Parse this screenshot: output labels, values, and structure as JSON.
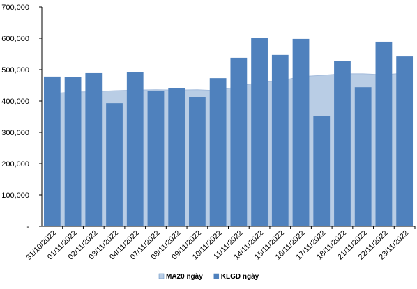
{
  "chart_data": {
    "type": "bar-area",
    "categories": [
      "31/10/2022",
      "01/11/2022",
      "02/11/2022",
      "03/11/2022",
      "04/11/2022",
      "07/11/2022",
      "08/11/2022",
      "09/11/2022",
      "10/11/2022",
      "11/11/2022",
      "14/11/2022",
      "15/11/2022",
      "16/11/2022",
      "17/11/2022",
      "18/11/2022",
      "21/11/2022",
      "22/11/2022",
      "23/11/2022"
    ],
    "series": [
      {
        "name": "MA20 ngày",
        "kind": "area",
        "color": "#b9cde5",
        "values": [
          424000,
          429000,
          430000,
          433000,
          435000,
          436000,
          435000,
          436000,
          433000,
          447000,
          460000,
          464000,
          478000,
          482000,
          487000,
          487000,
          484000,
          489000
        ]
      },
      {
        "name": "KLGD ngày",
        "kind": "bar",
        "color": "#4f81bd",
        "values": [
          478000,
          476000,
          489000,
          393000,
          493000,
          433000,
          440000,
          413000,
          473000,
          538000,
          600000,
          547000,
          598000,
          353000,
          527000,
          444000,
          589000,
          542000
        ]
      }
    ],
    "ylim": [
      0,
      700000
    ],
    "yticks": [
      {
        "value": 0,
        "label": "-"
      },
      {
        "value": 100000,
        "label": "100,000"
      },
      {
        "value": 200000,
        "label": "200,000"
      },
      {
        "value": 300000,
        "label": "300,000"
      },
      {
        "value": 400000,
        "label": "400,000"
      },
      {
        "value": 500000,
        "label": "500,000"
      },
      {
        "value": 600000,
        "label": "600,000"
      },
      {
        "value": 700000,
        "label": "700,000"
      }
    ],
    "legend": "bottom"
  }
}
